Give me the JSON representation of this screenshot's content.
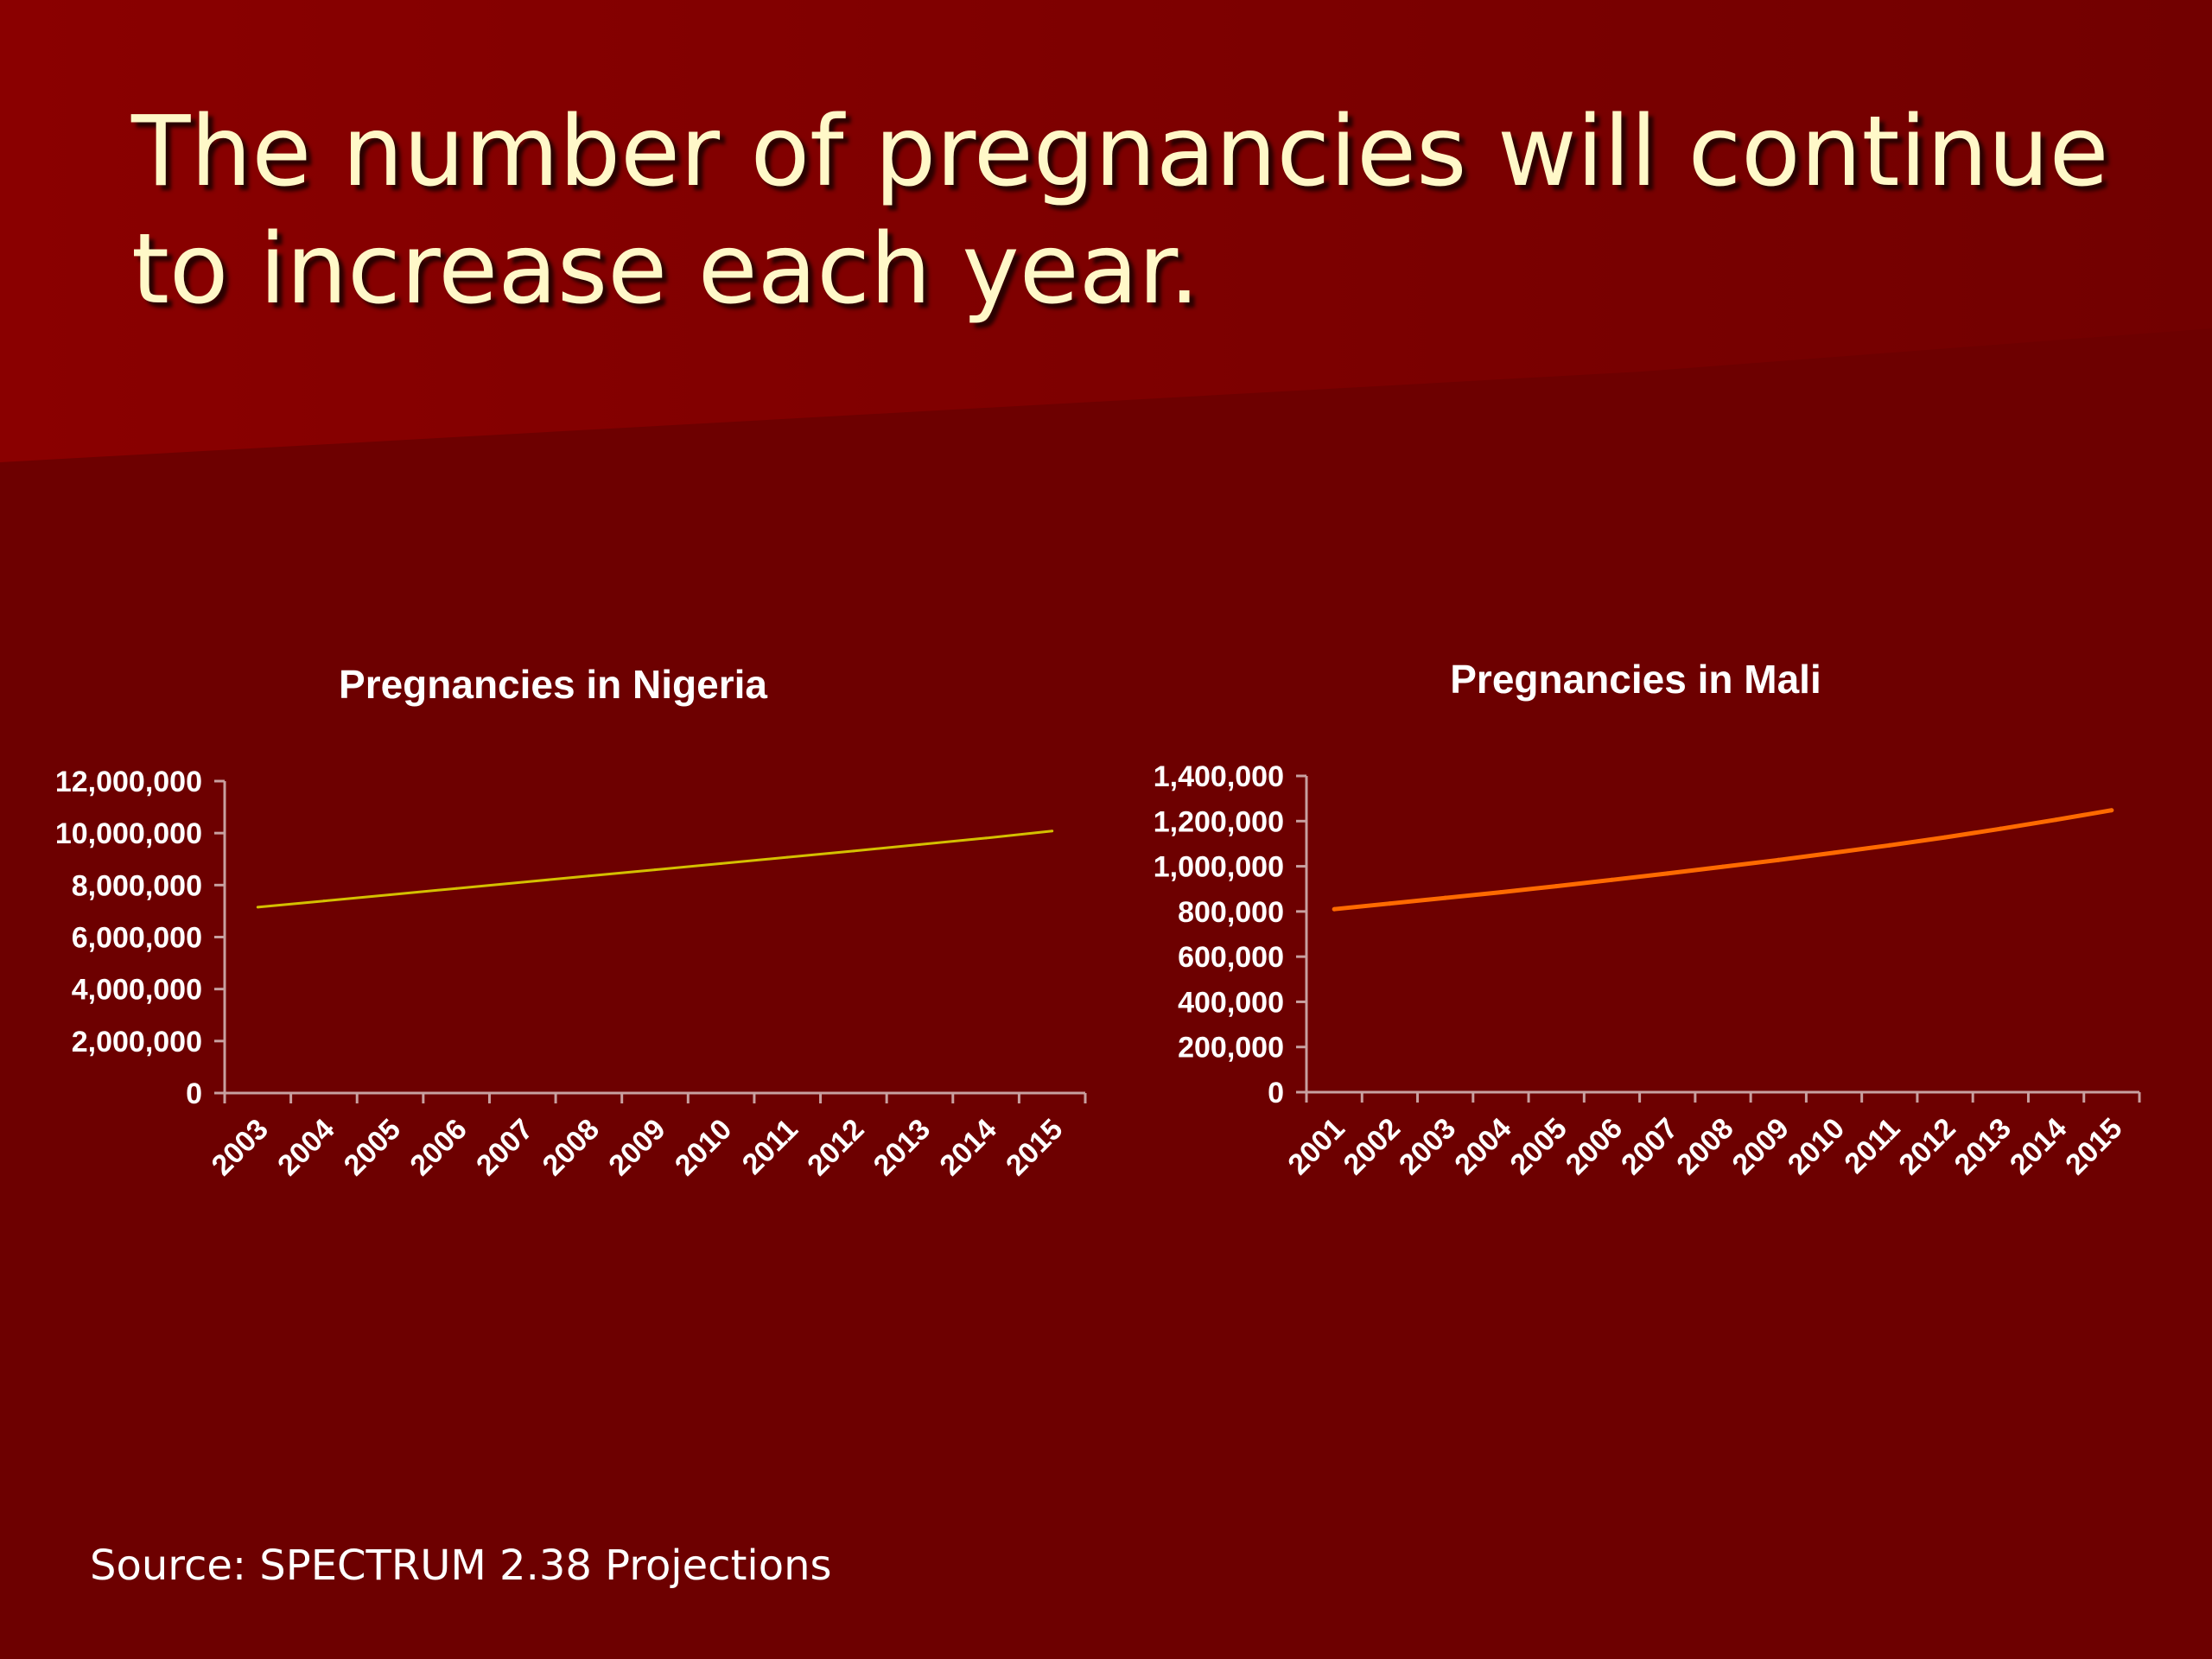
{
  "slide": {
    "title": "The number of pregnancies will continue to increase each year.",
    "source": "Source: SPECTRUM 2.38 Projections",
    "colors": {
      "background": "#6d0000",
      "title": "#fff8c8"
    }
  },
  "chart_data": [
    {
      "type": "line",
      "title": "Pregnancies in Nigeria",
      "xlabel": "",
      "ylabel": "",
      "categories": [
        "2003",
        "2004",
        "2005",
        "2006",
        "2007",
        "2008",
        "2009",
        "2010",
        "2011",
        "2012",
        "2013",
        "2014",
        "2015"
      ],
      "series": [
        {
          "values": [
            7150000,
            7390000,
            7630000,
            7870000,
            8110000,
            8350000,
            8590000,
            8830000,
            9070000,
            9310000,
            9560000,
            9810000,
            10080000
          ],
          "color": "#d4c000"
        }
      ],
      "ylim": [
        0,
        12000000
      ],
      "yticks": [
        0,
        2000000,
        4000000,
        6000000,
        8000000,
        10000000,
        12000000
      ],
      "ytick_labels": [
        "0",
        "2,000,000",
        "4,000,000",
        "6,000,000",
        "8,000,000",
        "10,000,000",
        "12,000,000"
      ],
      "grid": false,
      "legend": "none"
    },
    {
      "type": "line",
      "title": "Pregnancies in Mali",
      "xlabel": "",
      "ylabel": "",
      "categories": [
        "2001",
        "2002",
        "2003",
        "2004",
        "2005",
        "2006",
        "2007",
        "2008",
        "2009",
        "2010",
        "2011",
        "2012",
        "2013",
        "2014",
        "2015"
      ],
      "series": [
        {
          "values": [
            810000,
            835000,
            860000,
            885000,
            912000,
            940000,
            968000,
            998000,
            1028000,
            1060000,
            1093000,
            1128000,
            1166000,
            1206000,
            1248000
          ],
          "color": "#ff6a00"
        }
      ],
      "ylim": [
        0,
        1400000
      ],
      "yticks": [
        0,
        200000,
        400000,
        600000,
        800000,
        1000000,
        1200000,
        1400000
      ],
      "ytick_labels": [
        "0",
        "200,000",
        "400,000",
        "600,000",
        "800,000",
        "1,000,000",
        "1,200,000",
        "1,400,000"
      ],
      "grid": false,
      "legend": "none"
    }
  ]
}
